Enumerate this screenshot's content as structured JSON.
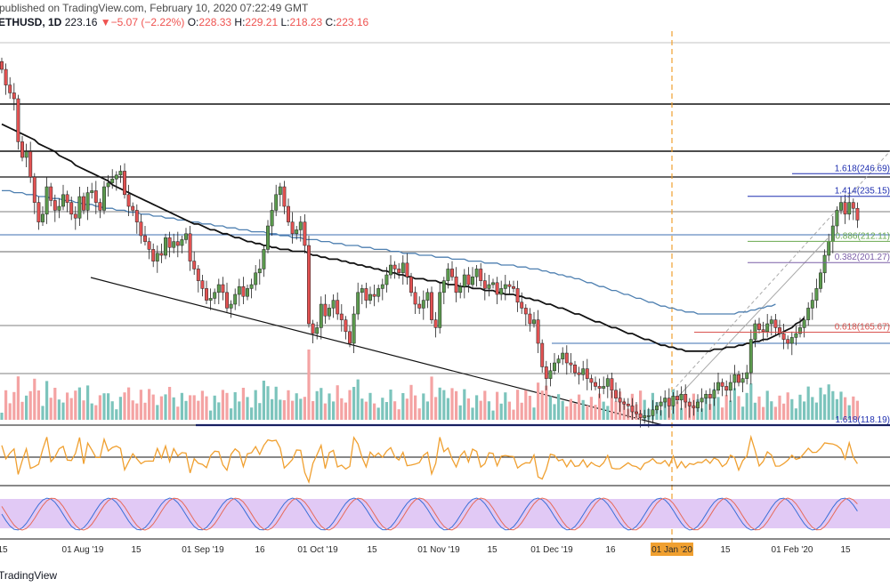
{
  "header": {
    "published": "published on TradingView.com, February 10, 2020 07:22:49 GMT",
    "symbol": "ETHUSD, 1D",
    "last": "223.16",
    "arrow": "▼",
    "change": "−5.07 (−2.22%)",
    "o_label": "O:",
    "o": "228.33",
    "h_label": "H:",
    "h": "229.21",
    "l_label": "L:",
    "l": "218.23",
    "c_label": "C:",
    "c": "223.16"
  },
  "footer": {
    "brand": "TradingView"
  },
  "colors": {
    "up": "#5b9a4d",
    "down": "#e35252",
    "ma_black": "#111111",
    "ma_blue": "#4d7fb0",
    "fib_green": "#6aa84f",
    "fib_purple": "#7b5ea7",
    "fib_red": "#d9534f",
    "fib_blue": "#1f2fb0",
    "rsi": "#f0a030",
    "stoch_band": "#e1c9f5",
    "vline": "#f0a030",
    "vol_up": "#7cc4bc",
    "vol_down": "#f4a3a3"
  },
  "chart_data": {
    "type": "candlestick",
    "title": "ETHUSD, 1D",
    "y_range": [
      110,
      300
    ],
    "fib_levels": [
      {
        "label": "1.618(246.69)",
        "value": 246.69,
        "color": "#1f2fb0"
      },
      {
        "label": "1.414(235.15)",
        "value": 235.15,
        "color": "#1f2fb0"
      },
      {
        "label": "0.886(212.11)",
        "value": 212.11,
        "color": "#6aa84f"
      },
      {
        "label": "0.382(201.27)",
        "value": 201.27,
        "color": "#7b5ea7"
      },
      {
        "label": "0.618(165.67)",
        "value": 165.67,
        "color": "#d9534f"
      },
      {
        "label": "1.618(118.19)",
        "value": 118.19,
        "color": "#1f2fb0"
      }
    ],
    "x_ticks": [
      "15",
      "01 Aug '19",
      "15",
      "01 Sep '19",
      "16",
      "01 Oct '19",
      "15",
      "01 Nov '19",
      "15",
      "01 Dec '19",
      "16",
      "01 Jan '20",
      "15",
      "01 Feb '20",
      "15"
    ],
    "highlight_tick": "01 Jan '20",
    "close_series": [
      300,
      292,
      288,
      285,
      263,
      255,
      258,
      245,
      232,
      222,
      226,
      240,
      233,
      228,
      230,
      236,
      232,
      226,
      224,
      235,
      228,
      237,
      238,
      232,
      228,
      240,
      242,
      244,
      246,
      248,
      236,
      230,
      228,
      222,
      215,
      212,
      208,
      202,
      206,
      205,
      214,
      209,
      212,
      210,
      213,
      216,
      202,
      198,
      192,
      188,
      182,
      183,
      186,
      190,
      186,
      178,
      180,
      185,
      189,
      184,
      188,
      190,
      196,
      198,
      208,
      220,
      228,
      236,
      240,
      230,
      222,
      216,
      218,
      222,
      210,
      170,
      165,
      168,
      180,
      174,
      178,
      182,
      175,
      172,
      166,
      160,
      175,
      186,
      188,
      182,
      185,
      184,
      188,
      190,
      195,
      200,
      198,
      196,
      201,
      194,
      186,
      180,
      178,
      182,
      186,
      172,
      168,
      186,
      192,
      198,
      194,
      186,
      189,
      195,
      190,
      194,
      198,
      192,
      188,
      190,
      191,
      185,
      188,
      190,
      189,
      188,
      181,
      178,
      175,
      170,
      172,
      160,
      148,
      142,
      146,
      150,
      152,
      155,
      150,
      149,
      145,
      144,
      147,
      142,
      140,
      138,
      137,
      138,
      142,
      136,
      132,
      130,
      129,
      128,
      125,
      124,
      122,
      123,
      123,
      126,
      128,
      130,
      132,
      128,
      133,
      131,
      134,
      130,
      128,
      127,
      130,
      132,
      134,
      132,
      136,
      140,
      138,
      136,
      140,
      144,
      140,
      142,
      145,
      162,
      170,
      167,
      166,
      170,
      172,
      168,
      165,
      162,
      160,
      163,
      165,
      168,
      172,
      178,
      182,
      188,
      196,
      205,
      212,
      220,
      228,
      232,
      226,
      232,
      229,
      223
    ],
    "ma_black_series": [
      272,
      271,
      270,
      269,
      268,
      267,
      266,
      265,
      264,
      262,
      261,
      260,
      259,
      258,
      256,
      255,
      254,
      253,
      251,
      250,
      249,
      248,
      247,
      246,
      245,
      244,
      243,
      241,
      240,
      239,
      238,
      237,
      236,
      235,
      234,
      233,
      232,
      231,
      230,
      229,
      228,
      227,
      226,
      225,
      224,
      223,
      222,
      221,
      221,
      220,
      219,
      218,
      218,
      217,
      216,
      216,
      215,
      214,
      214,
      213,
      212,
      212,
      211,
      211,
      210,
      210,
      209,
      209,
      208,
      208,
      208,
      207,
      207,
      207,
      207,
      206,
      205,
      205,
      204,
      204,
      203,
      203,
      203,
      202,
      202,
      201,
      201,
      200,
      200,
      199,
      199,
      198,
      198,
      197,
      197,
      196,
      196,
      195,
      195,
      194,
      194,
      193,
      193,
      193,
      192,
      192,
      192,
      191,
      191,
      190,
      190,
      190,
      189,
      189,
      189,
      188,
      188,
      188,
      187,
      187,
      187,
      186,
      186,
      185,
      185,
      185,
      184,
      184,
      183,
      183,
      182,
      182,
      181,
      180,
      180,
      179,
      178,
      178,
      177,
      176,
      175,
      175,
      174,
      173,
      172,
      171,
      171,
      170,
      169,
      168,
      168,
      167,
      166,
      165,
      165,
      164,
      163,
      162,
      162,
      161,
      160,
      159,
      159,
      158,
      158,
      157,
      157,
      156,
      156,
      156,
      156,
      156,
      156,
      156,
      157,
      157,
      157,
      158,
      158,
      158,
      159,
      159,
      160,
      160,
      161,
      161,
      162,
      162,
      163,
      164,
      165,
      166,
      167,
      168,
      170,
      171,
      173
    ],
    "ma_blue_series": [
      238,
      238,
      238,
      237,
      237,
      237,
      236,
      236,
      236,
      235,
      235,
      235,
      234,
      234,
      234,
      233,
      233,
      233,
      232,
      232,
      231,
      231,
      231,
      230,
      230,
      229,
      229,
      229,
      228,
      228,
      228,
      227,
      227,
      227,
      226,
      226,
      226,
      225,
      225,
      225,
      224,
      224,
      224,
      223,
      223,
      223,
      222,
      222,
      222,
      221,
      221,
      221,
      220,
      220,
      220,
      219,
      219,
      219,
      218,
      218,
      218,
      217,
      217,
      217,
      217,
      216,
      216,
      216,
      215,
      215,
      215,
      214,
      214,
      214,
      213,
      213,
      213,
      213,
      212,
      212,
      212,
      211,
      211,
      211,
      210,
      210,
      210,
      210,
      209,
      209,
      209,
      208,
      208,
      208,
      208,
      207,
      207,
      207,
      206,
      206,
      206,
      206,
      205,
      205,
      205,
      205,
      204,
      204,
      204,
      204,
      203,
      203,
      203,
      203,
      202,
      202,
      202,
      202,
      201,
      201,
      201,
      201,
      200,
      200,
      200,
      200,
      199,
      199,
      199,
      198,
      198,
      198,
      197,
      197,
      196,
      196,
      195,
      195,
      194,
      194,
      193,
      193,
      192,
      191,
      191,
      190,
      189,
      189,
      188,
      187,
      187,
      186,
      185,
      185,
      184,
      183,
      183,
      182,
      181,
      181,
      180,
      179,
      179,
      178,
      178,
      177,
      177,
      176,
      176,
      176,
      175,
      175,
      175,
      175,
      175,
      175,
      175,
      175,
      175,
      175,
      176,
      176,
      176,
      177,
      177,
      178,
      178,
      179,
      179,
      180
    ]
  }
}
